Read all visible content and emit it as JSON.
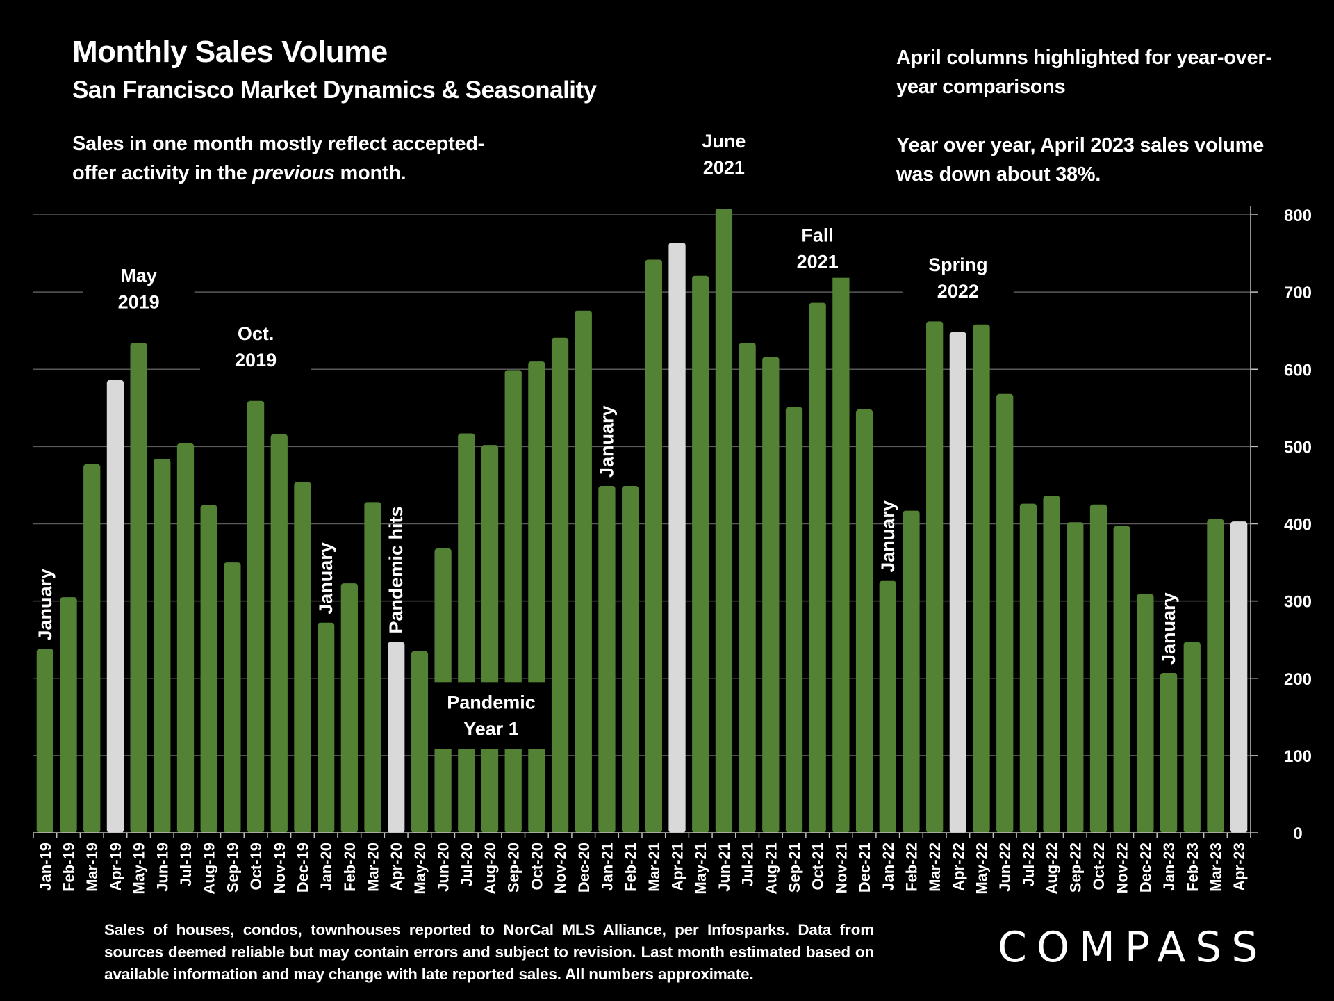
{
  "header": {
    "title": "Monthly Sales Volume",
    "subtitle": "San Francisco Market Dynamics & Seasonality",
    "note_left_1": "Sales in one month mostly reflect accepted-",
    "note_left_2a": "offer activity in the ",
    "note_left_2b": "previous",
    "note_left_2c": " month.",
    "note_right_1": "April columns highlighted for year-over-year comparisons",
    "note_right_2": "Year over year, April 2023 sales volume was down about 38%."
  },
  "footer": {
    "disclaimer": "Sales of houses, condos, townhouses reported to NorCal MLS Alliance, per Infosparks. Data from sources deemed reliable but may contain errors and subject to revision. Last month estimated based on available information and may change with late reported sales. All numbers approximate.",
    "logo": "COMPASS"
  },
  "colors": {
    "background": "#000000",
    "bar": "#548235",
    "highlight_bar": "#d9d9d9",
    "gridline": "#595959",
    "text": "#ffffff"
  },
  "chart_data": {
    "type": "bar",
    "title": "Monthly Sales Volume",
    "subtitle": "San Francisco Market Dynamics & Seasonality",
    "xlabel": "",
    "ylabel": "",
    "ylim": [
      0,
      800
    ],
    "yticks": [
      0,
      100,
      200,
      300,
      400,
      500,
      600,
      700,
      800
    ],
    "y_axis_position": "right",
    "grid": true,
    "highlight_rule": "April columns highlighted",
    "categories": [
      "Jan-19",
      "Feb-19",
      "Mar-19",
      "Apr-19",
      "May-19",
      "Jun-19",
      "Jul-19",
      "Aug-19",
      "Sep-19",
      "Oct-19",
      "Nov-19",
      "Dec-19",
      "Jan-20",
      "Feb-20",
      "Mar-20",
      "Apr-20",
      "May-20",
      "Jun-20",
      "Jul-20",
      "Aug-20",
      "Sep-20",
      "Oct-20",
      "Nov-20",
      "Dec-20",
      "Jan-21",
      "Feb-21",
      "Mar-21",
      "Apr-21",
      "May-21",
      "Jun-21",
      "Jul-21",
      "Aug-21",
      "Sep-21",
      "Oct-21",
      "Nov-21",
      "Dec-21",
      "Jan-22",
      "Feb-22",
      "Mar-22",
      "Apr-22",
      "May-22",
      "Jun-22",
      "Jul-22",
      "Aug-22",
      "Sep-22",
      "Oct-22",
      "Nov-22",
      "Dec-22",
      "Jan-23",
      "Feb-23",
      "Mar-23",
      "Apr-23"
    ],
    "values": [
      238,
      305,
      477,
      586,
      634,
      484,
      504,
      424,
      350,
      559,
      516,
      454,
      272,
      323,
      428,
      247,
      235,
      368,
      517,
      502,
      599,
      610,
      641,
      676,
      449,
      449,
      742,
      764,
      721,
      808,
      634,
      616,
      551,
      686,
      728,
      548,
      326,
      417,
      662,
      648,
      658,
      568,
      426,
      436,
      402,
      425,
      397,
      309,
      207,
      247,
      406,
      403
    ],
    "highlighted": [
      "Apr-19",
      "Apr-20",
      "Apr-21",
      "Apr-22",
      "Apr-23"
    ],
    "annotations": [
      {
        "text": [
          "January"
        ],
        "category": "Jan-19",
        "rotated": true
      },
      {
        "text": [
          "May",
          "2019"
        ],
        "category": "May-19",
        "rotated": false
      },
      {
        "text": [
          "Oct.",
          "2019"
        ],
        "category": "Oct-19",
        "rotated": false
      },
      {
        "text": [
          "January"
        ],
        "category": "Jan-20",
        "rotated": true
      },
      {
        "text": [
          "Pandemic hits"
        ],
        "category": "Apr-20",
        "rotated": true
      },
      {
        "text": [
          "Pandemic",
          "Year 1"
        ],
        "category": "Aug-20",
        "rotated": false,
        "boxed": true
      },
      {
        "text": [
          "January"
        ],
        "category": "Jan-21",
        "rotated": true
      },
      {
        "text": [
          "June",
          "2021"
        ],
        "category": "Jun-21",
        "rotated": false
      },
      {
        "text": [
          "Fall",
          "2021"
        ],
        "category": "Oct-21",
        "rotated": false
      },
      {
        "text": [
          "January"
        ],
        "category": "Jan-22",
        "rotated": true
      },
      {
        "text": [
          "Spring",
          "2022"
        ],
        "category": "Apr-22",
        "rotated": false
      },
      {
        "text": [
          "January"
        ],
        "category": "Jan-23",
        "rotated": true
      }
    ]
  }
}
